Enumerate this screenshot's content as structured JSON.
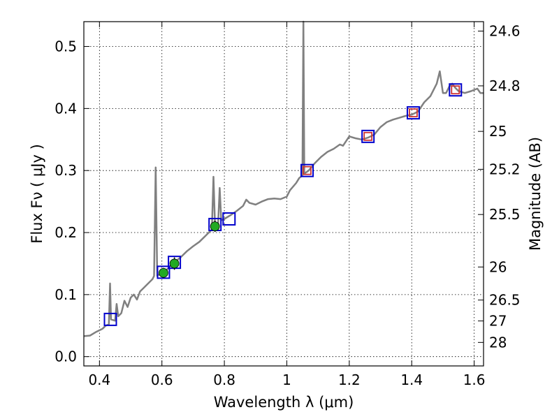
{
  "chart_data": {
    "type": "scatter",
    "title": "",
    "xlabel": "Wavelength  λ (μm)",
    "ylabel": "Flux  Fν ( μJy )",
    "ylabel_right": "Magnitude (AB)",
    "xlim": [
      0.35,
      1.63
    ],
    "ylim": [
      -0.015,
      0.54
    ],
    "grid": true,
    "x_ticks": [
      {
        "value": 0.4,
        "label": "0.4"
      },
      {
        "value": 0.6,
        "label": "0.6"
      },
      {
        "value": 0.8,
        "label": "0.8"
      },
      {
        "value": 1.0,
        "label": "1"
      },
      {
        "value": 1.2,
        "label": "1.2"
      },
      {
        "value": 1.4,
        "label": "1.4"
      },
      {
        "value": 1.6,
        "label": "1.6"
      }
    ],
    "y_ticks": [
      {
        "value": 0.0,
        "label": "0.0"
      },
      {
        "value": 0.1,
        "label": "0.1"
      },
      {
        "value": 0.2,
        "label": "0.2"
      },
      {
        "value": 0.3,
        "label": "0.3"
      },
      {
        "value": 0.4,
        "label": "0.4"
      },
      {
        "value": 0.5,
        "label": "0.5"
      }
    ],
    "right_ticks": [
      {
        "flux": 0.5248,
        "label": "24.6"
      },
      {
        "flux": 0.4365,
        "label": "24.8"
      },
      {
        "flux": 0.3631,
        "label": "25"
      },
      {
        "flux": 0.302,
        "label": "25.2"
      },
      {
        "flux": 0.2291,
        "label": "25.5"
      },
      {
        "flux": 0.1445,
        "label": "26"
      },
      {
        "flux": 0.0912,
        "label": "26.5"
      },
      {
        "flux": 0.0575,
        "label": "27"
      },
      {
        "flux": 0.0229,
        "label": "28"
      }
    ],
    "series": [
      {
        "mark": "line",
        "color": "#808080",
        "points": [
          [
            0.35,
            0.033
          ],
          [
            0.37,
            0.034
          ],
          [
            0.39,
            0.04
          ],
          [
            0.41,
            0.045
          ],
          [
            0.42,
            0.05
          ],
          [
            0.43,
            0.052
          ],
          [
            0.434,
            0.118
          ],
          [
            0.437,
            0.06
          ],
          [
            0.45,
            0.058
          ],
          [
            0.455,
            0.085
          ],
          [
            0.46,
            0.065
          ],
          [
            0.47,
            0.07
          ],
          [
            0.48,
            0.09
          ],
          [
            0.49,
            0.08
          ],
          [
            0.5,
            0.095
          ],
          [
            0.51,
            0.1
          ],
          [
            0.52,
            0.092
          ],
          [
            0.53,
            0.105
          ],
          [
            0.54,
            0.11
          ],
          [
            0.55,
            0.115
          ],
          [
            0.56,
            0.12
          ],
          [
            0.57,
            0.125
          ],
          [
            0.575,
            0.13
          ],
          [
            0.58,
            0.305
          ],
          [
            0.585,
            0.13
          ],
          [
            0.59,
            0.132
          ],
          [
            0.6,
            0.135
          ],
          [
            0.61,
            0.138
          ],
          [
            0.62,
            0.142
          ],
          [
            0.63,
            0.148
          ],
          [
            0.64,
            0.152
          ],
          [
            0.66,
            0.16
          ],
          [
            0.68,
            0.17
          ],
          [
            0.7,
            0.178
          ],
          [
            0.72,
            0.185
          ],
          [
            0.74,
            0.195
          ],
          [
            0.76,
            0.205
          ],
          [
            0.765,
            0.29
          ],
          [
            0.77,
            0.212
          ],
          [
            0.78,
            0.215
          ],
          [
            0.785,
            0.272
          ],
          [
            0.79,
            0.22
          ],
          [
            0.8,
            0.222
          ],
          [
            0.82,
            0.228
          ],
          [
            0.84,
            0.235
          ],
          [
            0.86,
            0.243
          ],
          [
            0.87,
            0.253
          ],
          [
            0.88,
            0.248
          ],
          [
            0.9,
            0.245
          ],
          [
            0.92,
            0.25
          ],
          [
            0.94,
            0.254
          ],
          [
            0.96,
            0.255
          ],
          [
            0.98,
            0.254
          ],
          [
            1.0,
            0.258
          ],
          [
            1.01,
            0.268
          ],
          [
            1.03,
            0.28
          ],
          [
            1.04,
            0.288
          ],
          [
            1.05,
            0.292
          ],
          [
            1.053,
            0.54
          ],
          [
            1.056,
            0.295
          ],
          [
            1.07,
            0.3
          ],
          [
            1.09,
            0.312
          ],
          [
            1.11,
            0.322
          ],
          [
            1.13,
            0.33
          ],
          [
            1.15,
            0.335
          ],
          [
            1.17,
            0.342
          ],
          [
            1.18,
            0.34
          ],
          [
            1.2,
            0.355
          ],
          [
            1.22,
            0.352
          ],
          [
            1.24,
            0.35
          ],
          [
            1.26,
            0.353
          ],
          [
            1.28,
            0.358
          ],
          [
            1.3,
            0.37
          ],
          [
            1.32,
            0.378
          ],
          [
            1.34,
            0.382
          ],
          [
            1.36,
            0.385
          ],
          [
            1.38,
            0.388
          ],
          [
            1.4,
            0.39
          ],
          [
            1.42,
            0.395
          ],
          [
            1.44,
            0.41
          ],
          [
            1.46,
            0.42
          ],
          [
            1.47,
            0.43
          ],
          [
            1.48,
            0.44
          ],
          [
            1.49,
            0.46
          ],
          [
            1.5,
            0.425
          ],
          [
            1.51,
            0.425
          ],
          [
            1.52,
            0.435
          ],
          [
            1.53,
            0.44
          ],
          [
            1.54,
            0.433
          ],
          [
            1.55,
            0.428
          ],
          [
            1.57,
            0.425
          ],
          [
            1.59,
            0.428
          ],
          [
            1.61,
            0.432
          ],
          [
            1.62,
            0.425
          ],
          [
            1.63,
            0.425
          ]
        ]
      },
      {
        "mark": "square-outline",
        "color": "#0000cc",
        "points": [
          [
            0.435,
            0.06
          ],
          [
            0.605,
            0.136
          ],
          [
            0.64,
            0.152
          ],
          [
            0.77,
            0.213
          ],
          [
            0.815,
            0.222
          ],
          [
            1.065,
            0.3
          ],
          [
            1.26,
            0.355
          ],
          [
            1.405,
            0.393
          ],
          [
            1.54,
            0.43
          ]
        ]
      },
      {
        "mark": "square-small",
        "color": "#cc3333",
        "points": [
          [
            1.065,
            0.3
          ],
          [
            1.26,
            0.355
          ],
          [
            1.405,
            0.393
          ],
          [
            1.54,
            0.43
          ]
        ]
      },
      {
        "mark": "circle-errorbar",
        "color": "#22aa22",
        "points": [
          [
            0.605,
            0.135,
            0.008
          ],
          [
            0.64,
            0.15,
            0.01
          ],
          [
            0.77,
            0.21,
            0.009
          ]
        ]
      }
    ]
  }
}
